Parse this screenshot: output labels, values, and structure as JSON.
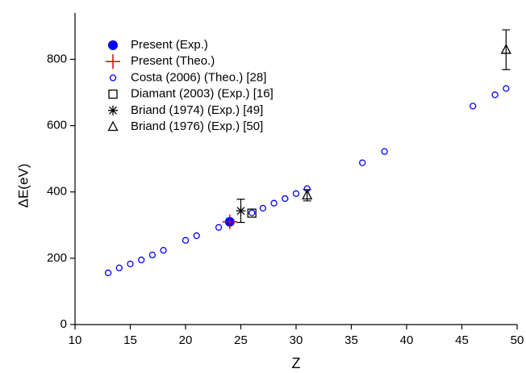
{
  "chart_data": {
    "type": "scatter",
    "x_label": "Z",
    "y_label": "ΔE(eV)",
    "xlim": [
      10,
      50
    ],
    "ylim": [
      0,
      940
    ],
    "xticks": [
      10,
      15,
      20,
      25,
      30,
      35,
      40,
      45,
      50
    ],
    "yticks": [
      0,
      200,
      400,
      600,
      800
    ],
    "legend": "upper left",
    "series": [
      {
        "name": "Present (Exp.)",
        "color": "#0000ff",
        "marker": "filled-circle",
        "x": [
          24
        ],
        "values": [
          310
        ]
      },
      {
        "name": "Present (Theo.)",
        "color": "#e00000",
        "marker": "plus",
        "x": [
          24
        ],
        "values": [
          310
        ]
      },
      {
        "name": "Costa (2006) (Theo.) [28]",
        "color": "#0000ff",
        "marker": "open-circle",
        "x": [
          13,
          14,
          15,
          16,
          17,
          18,
          20,
          21,
          23,
          24,
          26,
          27,
          28,
          29,
          30,
          31,
          36,
          38,
          46,
          48,
          49
        ],
        "values": [
          156,
          171,
          183,
          195,
          210,
          224,
          254,
          268,
          293,
          310,
          337,
          351,
          366,
          380,
          395,
          410,
          488,
          522,
          659,
          693,
          712
        ]
      },
      {
        "name": "Diamant (2003) (Exp.) [16]",
        "color": "#000000",
        "marker": "square",
        "x": [
          26
        ],
        "values": [
          336
        ]
      },
      {
        "name": "Briand (1974) (Exp.) [49]",
        "color": "#000000",
        "marker": "asterisk",
        "x": [
          25
        ],
        "values": [
          343
        ],
        "errors": [
          35
        ]
      },
      {
        "name": "Briand (1976) (Exp.) [50]",
        "color": "#000000",
        "marker": "triangle",
        "x": [
          31,
          49
        ],
        "values": [
          390,
          829
        ],
        "errors": [
          17,
          60
        ]
      }
    ]
  }
}
